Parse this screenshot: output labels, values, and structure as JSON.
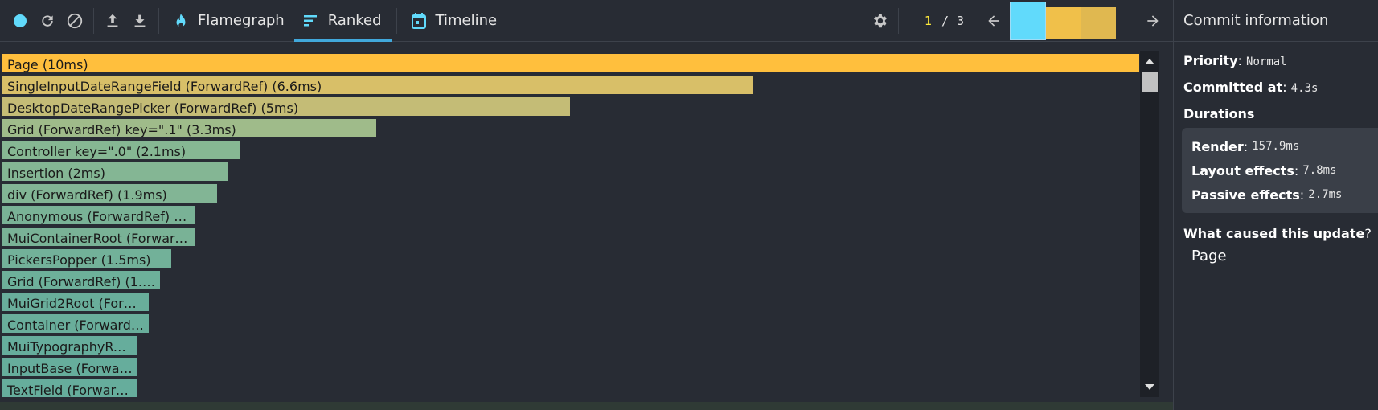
{
  "toolbar": {
    "tabs": [
      {
        "label": "Flamegraph",
        "icon": "flame-icon"
      },
      {
        "label": "Ranked",
        "icon": "ranked-icon"
      },
      {
        "label": "Timeline",
        "icon": "calendar-icon"
      }
    ],
    "commit_current": "1",
    "commit_separator": "/",
    "commit_total": "3",
    "commit_bars": [
      {
        "color": "#61dafb",
        "selected": true
      },
      {
        "color": "#f0c04a",
        "selected": false
      },
      {
        "color": "#e0b850",
        "selected": false
      }
    ]
  },
  "ranked": [
    {
      "label": "Page (10ms)",
      "color": "#ffbf3d",
      "value_ms": 10
    },
    {
      "label": "SingleInputDateRangeField (ForwardRef) (6.6ms)",
      "color": "#d8bf68",
      "value_ms": 6.6
    },
    {
      "label": "DesktopDateRangePicker (ForwardRef) (5ms)",
      "color": "#c4bc76",
      "value_ms": 5
    },
    {
      "label": "Grid (ForwardRef) key=\".1\" (3.3ms)",
      "color": "#9fbb8a",
      "value_ms": 3.3
    },
    {
      "label": "Controller key=\".0\" (2.1ms)",
      "color": "#86b793",
      "value_ms": 2.1
    },
    {
      "label": "Insertion (2ms)",
      "color": "#84b694",
      "value_ms": 2
    },
    {
      "label": "div (ForwardRef) (1.9ms)",
      "color": "#82b595",
      "value_ms": 1.9
    },
    {
      "label": "Anonymous (ForwardRef) (...",
      "color": "#79b296",
      "value_ms": 1.7
    },
    {
      "label": "MuiContainerRoot (Forward...",
      "color": "#79b296",
      "value_ms": 1.7
    },
    {
      "label": "PickersPopper (1.5ms)",
      "color": "#72b199",
      "value_ms": 1.5
    },
    {
      "label": "Grid (ForwardRef) (1.4...",
      "color": "#6db09a",
      "value_ms": 1.4
    },
    {
      "label": "MuiGrid2Root (Forw...",
      "color": "#69ae9b",
      "value_ms": 1.3
    },
    {
      "label": "Container (ForwardR...",
      "color": "#69ae9b",
      "value_ms": 1.3
    },
    {
      "label": "MuiTypographyRo...",
      "color": "#66ad9c",
      "value_ms": 1.2
    },
    {
      "label": "InputBase (Forwar...",
      "color": "#66ad9c",
      "value_ms": 1.2
    },
    {
      "label": "TextField (Forward...",
      "color": "#66ad9c",
      "value_ms": 1.2
    }
  ],
  "sidebar": {
    "title": "Commit information",
    "priority_label": "Priority",
    "priority_value": "Normal",
    "committed_label": "Committed at",
    "committed_value": "4.3s",
    "durations_label": "Durations",
    "render_label": "Render",
    "render_value": "157.9ms",
    "layout_label": "Layout effects",
    "layout_value": "7.8ms",
    "passive_label": "Passive effects",
    "passive_value": "2.7ms",
    "cause_label": "What caused this update",
    "cause_q": "?",
    "cause_item": "Page"
  }
}
